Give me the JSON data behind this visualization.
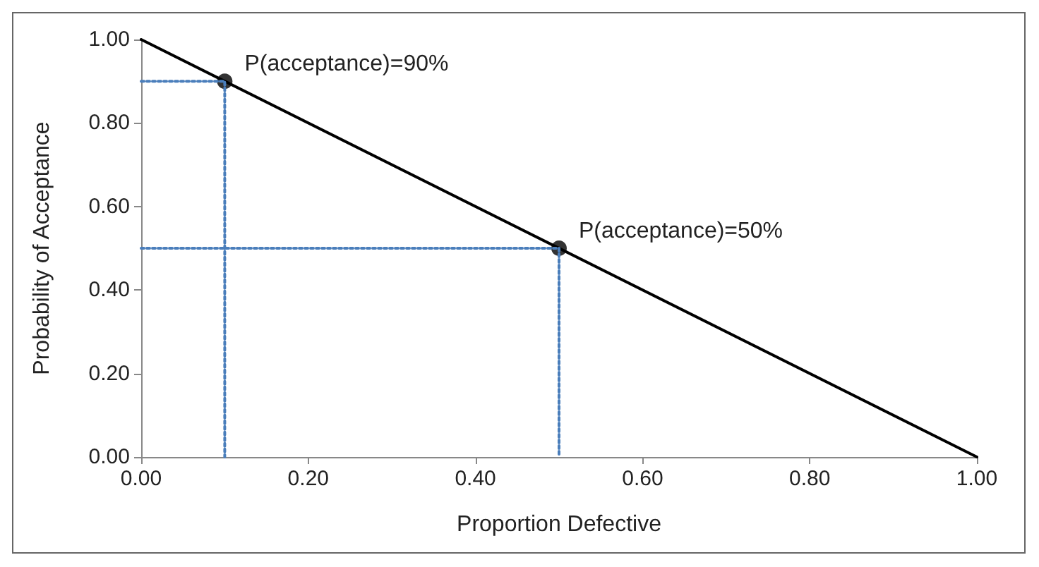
{
  "chart_data": {
    "type": "line",
    "xlabel": "Proportion Defective",
    "ylabel": "Probability of Acceptance",
    "xlim": [
      0,
      1
    ],
    "ylim": [
      0,
      1
    ],
    "xticks": [
      {
        "value": 0,
        "label": "0.00"
      },
      {
        "value": 0.2,
        "label": "0.20"
      },
      {
        "value": 0.4,
        "label": "0.40"
      },
      {
        "value": 0.6,
        "label": "0.60"
      },
      {
        "value": 0.8,
        "label": "0.80"
      },
      {
        "value": 1,
        "label": "1.00"
      }
    ],
    "yticks": [
      {
        "value": 0,
        "label": "0.00"
      },
      {
        "value": 0.2,
        "label": "0.20"
      },
      {
        "value": 0.4,
        "label": "0.40"
      },
      {
        "value": 0.6,
        "label": "0.60"
      },
      {
        "value": 0.8,
        "label": "0.80"
      },
      {
        "value": 1,
        "label": "1.00"
      }
    ],
    "grid": false,
    "series": [
      {
        "color": "#000000",
        "x": [
          0,
          1
        ],
        "values": [
          1,
          0
        ],
        "marker": "none",
        "line_style": "solid"
      },
      {
        "color": "#4a7ebb",
        "x": [
          0,
          0.1,
          0.1
        ],
        "values": [
          0.9,
          0.9,
          0
        ],
        "marker": "none",
        "line_style": "dotted"
      },
      {
        "color": "#4a7ebb",
        "x": [
          0,
          0.5,
          0.5
        ],
        "values": [
          0.5,
          0.5,
          0
        ],
        "marker": "none",
        "line_style": "dotted"
      },
      {
        "type": "scatter",
        "color": "#000000",
        "x": [
          0.1,
          0.5
        ],
        "values": [
          0.9,
          0.5
        ],
        "marker": "circle"
      }
    ],
    "annotations": [
      {
        "text": "P(acceptance)=90%",
        "x": 0.1,
        "y": 0.9
      },
      {
        "text": "P(acceptance)=50%",
        "x": 0.5,
        "y": 0.5
      }
    ]
  }
}
